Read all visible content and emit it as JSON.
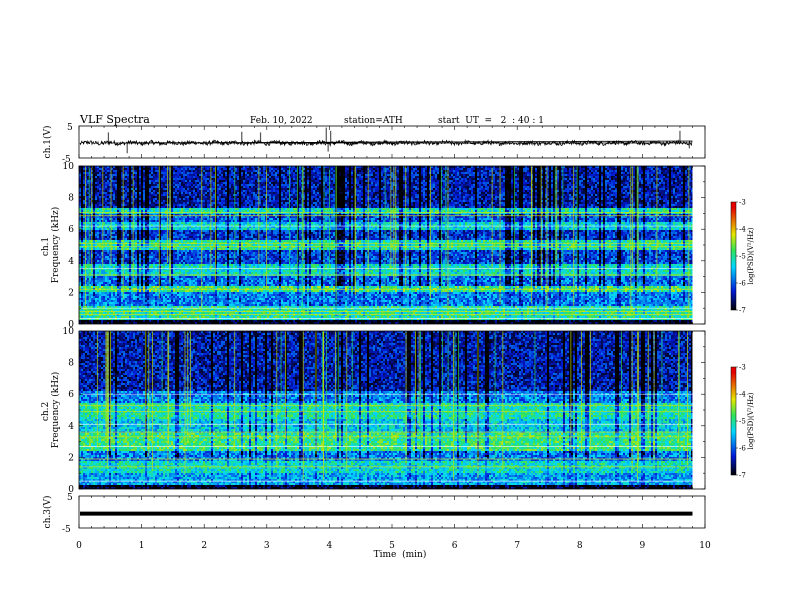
{
  "header": {
    "title": "VLF  Spectra",
    "date": "Feb. 10, 2022",
    "station": "station=ATH",
    "start_ut": "start  UT  =   2  : 40 : 1"
  },
  "colors": {
    "spectrum_low": "#000000",
    "spectrum_mid_low": "#0019d6",
    "spectrum_mid": "#00d7ff",
    "spectrum_mid_high": "#2fe35a",
    "spectrum_high": "#e6e600",
    "spectrum_peak": "#e60000"
  },
  "chart_data": [
    {
      "type": "line",
      "name": "ch1-waveform",
      "ylabel": "ch.1(V)",
      "ylim": [
        -5,
        5
      ],
      "yticks": [
        "5",
        "-5"
      ],
      "xlim": [
        0,
        10
      ],
      "note_values": "approximate waveform: baseline near -0.3 V with noise amplitude ~0.8 V and occasional spikes",
      "baseline": -0.3,
      "noise_amplitude": 0.8,
      "spikes": [
        {
          "x": 0.47,
          "y": 3.0
        },
        {
          "x": 0.77,
          "y": -3.5
        },
        {
          "x": 2.6,
          "y": 3.2
        },
        {
          "x": 2.9,
          "y": 3.0
        },
        {
          "x": 3.95,
          "y": 4.5
        },
        {
          "x": 3.98,
          "y": -3.0
        },
        {
          "x": 4.02,
          "y": 3.5
        },
        {
          "x": 9.6,
          "y": 3.5
        },
        {
          "x": 9.75,
          "y": -2.0
        }
      ]
    },
    {
      "type": "heatmap",
      "name": "ch1-spectrogram",
      "ylabel": "ch.1\nFrequency  (kHz)",
      "ylim": [
        0,
        10
      ],
      "yticks": [
        "0",
        "2",
        "4",
        "6",
        "8",
        "10"
      ],
      "xlim": [
        0,
        10
      ],
      "data_extent_min": 9.8,
      "colorbar": {
        "label": "log(PSD)(V²/Hz)",
        "range": [
          -7,
          -3
        ],
        "ticks": [
          "-3",
          "-4",
          "-5",
          "-6",
          "-7"
        ]
      },
      "bands_khz": [
        {
          "f": [
            0.0,
            0.3
          ],
          "level": -6.9
        },
        {
          "f": [
            0.3,
            1.1
          ],
          "level": -5.0
        },
        {
          "f": [
            1.1,
            2.0
          ],
          "level": -5.8
        },
        {
          "f": [
            2.0,
            2.4
          ],
          "level": -4.8
        },
        {
          "f": [
            2.4,
            3.0
          ],
          "level": -5.9
        },
        {
          "f": [
            3.0,
            3.8
          ],
          "level": -5.2
        },
        {
          "f": [
            3.8,
            4.7
          ],
          "level": -6.1
        },
        {
          "f": [
            4.7,
            5.3
          ],
          "level": -5.0
        },
        {
          "f": [
            5.3,
            6.0
          ],
          "level": -6.2
        },
        {
          "f": [
            6.0,
            6.4
          ],
          "level": -5.3
        },
        {
          "f": [
            6.4,
            6.9
          ],
          "level": -6.0
        },
        {
          "f": [
            6.9,
            7.3
          ],
          "level": -5.1
        },
        {
          "f": [
            7.3,
            10.0
          ],
          "level": -6.4
        }
      ],
      "tone_lines_khz": [
        0.35,
        0.6,
        0.8,
        1.0,
        2.2,
        3.1,
        3.5,
        4.9,
        5.1,
        6.2,
        6.85,
        7.05
      ]
    },
    {
      "type": "heatmap",
      "name": "ch2-spectrogram",
      "ylabel": "ch.2\nFrequency  (kHz)",
      "ylim": [
        0,
        10
      ],
      "yticks": [
        "0",
        "2",
        "4",
        "6",
        "8",
        "10"
      ],
      "xlim": [
        0,
        10
      ],
      "data_extent_min": 9.8,
      "colorbar": {
        "label": "log(PSD)(V²/Hz)",
        "range": [
          -7,
          -3
        ],
        "ticks": [
          "-3",
          "-4",
          "-5",
          "-6",
          "-7"
        ]
      },
      "bands_khz": [
        {
          "f": [
            0.0,
            0.3
          ],
          "level": -6.9
        },
        {
          "f": [
            0.3,
            1.0
          ],
          "level": -5.6
        },
        {
          "f": [
            1.0,
            1.8
          ],
          "level": -5.2
        },
        {
          "f": [
            1.8,
            2.4
          ],
          "level": -5.8
        },
        {
          "f": [
            2.4,
            3.6
          ],
          "level": -4.9
        },
        {
          "f": [
            3.6,
            4.4
          ],
          "level": -5.4
        },
        {
          "f": [
            4.4,
            5.4
          ],
          "level": -5.1
        },
        {
          "f": [
            5.4,
            6.2
          ],
          "level": -5.8
        },
        {
          "f": [
            6.2,
            10.0
          ],
          "level": -6.4
        }
      ],
      "tone_lines_khz": [
        0.5,
        1.4,
        1.9,
        2.7,
        3.3,
        3.6,
        4.1,
        4.9,
        5.3,
        6.0
      ]
    },
    {
      "type": "line",
      "name": "ch3-waveform",
      "ylabel": "ch.3(V)",
      "ylim": [
        -5,
        5
      ],
      "yticks": [
        "5",
        "-5"
      ],
      "xlim": [
        0,
        10
      ],
      "xlabel": "Time  (min)",
      "xticks": [
        "0",
        "1",
        "2",
        "3",
        "4",
        "5",
        "6",
        "7",
        "8",
        "9",
        "10"
      ],
      "value_constant": -0.5
    }
  ]
}
